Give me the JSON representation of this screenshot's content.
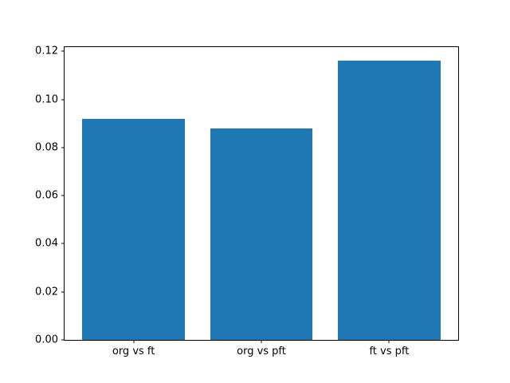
{
  "chart_data": {
    "type": "bar",
    "categories": [
      "org vs ft",
      "org vs pft",
      "ft vs pft"
    ],
    "values": [
      0.092,
      0.088,
      0.116
    ],
    "title": "",
    "xlabel": "",
    "ylabel": "",
    "ylim": [
      0,
      0.1218
    ],
    "yticks": [
      0.0,
      0.02,
      0.04,
      0.06,
      0.08,
      0.1,
      0.12
    ],
    "ytick_format_decimals": 2,
    "bar_color": "#1f77b4",
    "axes_edge_color": "#000000",
    "background_color": "#ffffff",
    "grid": false,
    "legend": "none"
  }
}
